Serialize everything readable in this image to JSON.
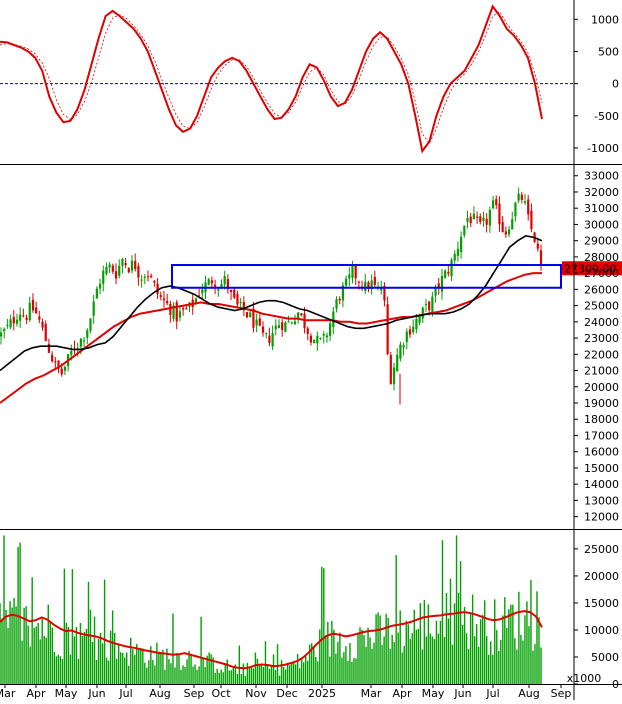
{
  "chart_data": [
    {
      "type": "line",
      "panel": "oscillator",
      "ylim": [
        -1250,
        1300
      ],
      "y_ticks": [
        "1000",
        "500",
        "0",
        "-500",
        "-1000"
      ],
      "zero_line": true,
      "colors": {
        "main": "#e00000",
        "signal": "#e00000",
        "zero": "#0000cc"
      },
      "series": [
        {
          "style": "solid",
          "values": [
            650,
            640,
            600,
            560,
            500,
            400,
            200,
            -200,
            -450,
            -600,
            -580,
            -400,
            -100,
            300,
            700,
            1050,
            1130,
            1050,
            950,
            850,
            700,
            500,
            200,
            -100,
            -400,
            -650,
            -750,
            -700,
            -500,
            -200,
            100,
            250,
            350,
            400,
            350,
            200,
            0,
            -200,
            -400,
            -550,
            -530,
            -400,
            -200,
            100,
            300,
            250,
            50,
            -200,
            -350,
            -300,
            -100,
            200,
            500,
            700,
            800,
            700,
            500,
            300,
            0,
            -500,
            -1050,
            -900,
            -500,
            -200,
            0,
            100,
            200,
            400,
            600,
            900,
            1200,
            1050,
            850,
            750,
            600,
            400,
            0,
            -550
          ]
        },
        {
          "style": "dashed",
          "values": [
            600,
            620,
            610,
            580,
            540,
            460,
            320,
            80,
            -250,
            -480,
            -560,
            -480,
            -280,
            20,
            400,
            780,
            1020,
            1070,
            1010,
            900,
            760,
            590,
            350,
            60,
            -220,
            -480,
            -660,
            -700,
            -600,
            -370,
            -80,
            150,
            290,
            370,
            370,
            270,
            90,
            -110,
            -300,
            -470,
            -520,
            -450,
            -290,
            -40,
            180,
            250,
            130,
            -100,
            -280,
            -320,
            -190,
            60,
            350,
            580,
            720,
            730,
            580,
            390,
            140,
            -280,
            -780,
            -930,
            -700,
            -380,
            -120,
            50,
            150,
            300,
            500,
            750,
            1050,
            1120,
            930,
            790,
            660,
            480,
            150,
            -300
          ]
        }
      ]
    },
    {
      "type": "candlestick",
      "panel": "price",
      "ylim": [
        11300,
        33600
      ],
      "y_ticks": [
        "33000",
        "32000",
        "31000",
        "30000",
        "29000",
        "28000",
        "27000",
        "26000",
        "25000",
        "24000",
        "23000",
        "22000",
        "21000",
        "20000",
        "19000",
        "18000",
        "17000",
        "16000",
        "15000",
        "14000",
        "13000",
        "12000"
      ],
      "last_price_label": "27300.00",
      "colors": {
        "up": "#00a000",
        "down": "#e00000",
        "ma_short": "#000000",
        "ma_long": "#e00000",
        "box": "#0000ee",
        "label_bg": "#e00000"
      },
      "box": {
        "start": 43,
        "end": 140,
        "top": 27500,
        "bottom": 26100
      },
      "closes": [
        23200,
        23600,
        24100,
        24700,
        24300,
        24900,
        24400,
        23300,
        22200,
        21200,
        20800,
        21600,
        22400,
        22800,
        23400,
        24600,
        26300,
        27100,
        27400,
        27000,
        27900,
        27400,
        27600,
        26800,
        27100,
        26400,
        25600,
        25200,
        24800,
        24300,
        24600,
        24800,
        25300,
        26100,
        26300,
        26700,
        26200,
        26600,
        25500,
        24900,
        24700,
        24300,
        23800,
        23100,
        22900,
        23500,
        24000,
        23800,
        24200,
        24600,
        23900,
        23200,
        22800,
        22700,
        23600,
        24900,
        25800,
        26300,
        27100,
        26600,
        26100,
        26400,
        25900,
        26200,
        20300,
        21600,
        22700,
        23400,
        23900,
        24300,
        24800,
        25200,
        26200,
        26800,
        27400,
        28300,
        29600,
        30500,
        30200,
        29800,
        30200,
        31200,
        30500,
        29400,
        30300,
        31400,
        31700,
        30100,
        29100,
        27300
      ],
      "ma_short": [
        21000,
        21400,
        21800,
        22200,
        22400,
        22500,
        22500,
        22500,
        22400,
        22300,
        22300,
        22400,
        22600,
        22700,
        23100,
        23700,
        24300,
        24900,
        25400,
        25800,
        26100,
        26200,
        26100,
        25900,
        25700,
        25400,
        25100,
        24900,
        24800,
        24700,
        24800,
        25000,
        25200,
        25300,
        25300,
        25200,
        25000,
        24800,
        24700,
        24500,
        24300,
        24100,
        23900,
        23700,
        23600,
        23600,
        23700,
        23800,
        23900,
        24100,
        24200,
        24300,
        24400,
        24500,
        24500,
        24500,
        24600,
        24800,
        25100,
        25600,
        26200,
        27000,
        27800,
        28600,
        29000,
        29300,
        29200,
        29000
      ],
      "ma_long": [
        19000,
        19400,
        19800,
        20200,
        20500,
        20700,
        21000,
        21300,
        21700,
        22100,
        22500,
        22900,
        23300,
        23700,
        24000,
        24300,
        24500,
        24600,
        24700,
        24800,
        24900,
        25000,
        25100,
        25200,
        25100,
        25100,
        25000,
        24900,
        24800,
        24700,
        24500,
        24400,
        24300,
        24200,
        24200,
        24100,
        24100,
        24100,
        24100,
        24000,
        24000,
        23900,
        23900,
        24000,
        24100,
        24200,
        24300,
        24300,
        24400,
        24500,
        24600,
        24700,
        24900,
        25100,
        25300,
        25600,
        25900,
        26200,
        26500,
        26700,
        26900,
        27000,
        27000
      ]
    },
    {
      "type": "bar",
      "panel": "volume",
      "ylim": [
        0,
        28500
      ],
      "y_ticks": [
        "25000",
        "20000",
        "15000",
        "10000",
        "5000",
        "0"
      ],
      "multiplier_label": "x1000",
      "colors": {
        "bar": "#00a000",
        "ma": "#e00000"
      },
      "ma_values": [
        11500,
        12500,
        12800,
        12600,
        12100,
        11600,
        11800,
        12300,
        11900,
        11000,
        10300,
        9800,
        9900,
        9500,
        9200,
        9000,
        8800,
        8500,
        8000,
        7600,
        7300,
        7000,
        6800,
        6600,
        6300,
        6100,
        5900,
        5700,
        5600,
        5400,
        5500,
        5700,
        5400,
        5100,
        4800,
        4500,
        4200,
        3900,
        3600,
        3200,
        3000,
        2900,
        3100,
        3500,
        3600,
        3500,
        3300,
        3400,
        3600,
        3900,
        4300,
        5000,
        6000,
        7200,
        8200,
        9000,
        9300,
        9100,
        8800,
        9000,
        9300,
        9600,
        9800,
        9900,
        10100,
        10500,
        10800,
        11000,
        11200,
        11500,
        11900,
        12300,
        12500,
        12600,
        12700,
        12900,
        13000,
        13200,
        13300,
        13100,
        12800,
        12400,
        12000,
        11800,
        12000,
        12400,
        12900,
        13300,
        13500,
        13300,
        12500,
        10500
      ]
    }
  ],
  "x_axis_labels": [
    "Mar",
    "Apr",
    "May",
    "Jun",
    "Jul",
    "Aug",
    "Sep",
    "Oct",
    "Nov",
    "Dec",
    "2025",
    "Mar",
    "Apr",
    "May",
    "Jun",
    "Jul",
    "Aug",
    "Sep"
  ]
}
